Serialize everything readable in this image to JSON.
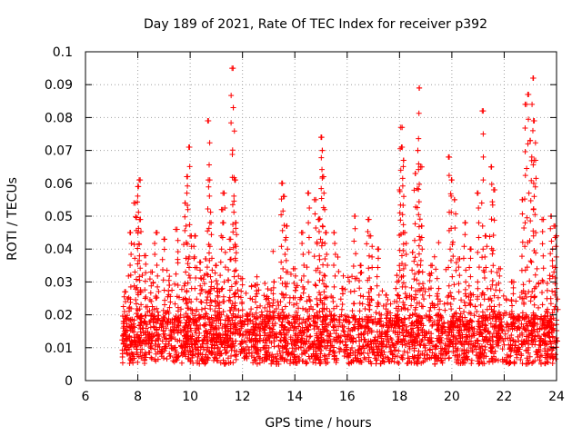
{
  "chart_data": {
    "type": "scatter",
    "title": "Day 189 of 2021, Rate Of TEC Index for receiver p392",
    "xlabel": "GPS time / hours",
    "ylabel": "ROTI / TECUs",
    "xlim": [
      6,
      24
    ],
    "ylim": [
      0,
      0.1
    ],
    "xticks": [
      6,
      8,
      10,
      12,
      14,
      16,
      18,
      20,
      22,
      24
    ],
    "xtick_labels": [
      "6",
      "8",
      "10",
      "12",
      "14",
      "16",
      "18",
      "20",
      "22",
      "24"
    ],
    "yticks": [
      0,
      0.01,
      0.02,
      0.03,
      0.04,
      0.05,
      0.06,
      0.07,
      0.08,
      0.09,
      0.1
    ],
    "ytick_labels": [
      "0",
      "0.01",
      "0.02",
      "0.03",
      "0.04",
      "0.05",
      "0.06",
      "0.07",
      "0.08",
      "0.09",
      "0.1"
    ],
    "grid": true,
    "marker": "+",
    "series_color": "#ff0000",
    "data_range_hours": [
      7.4,
      24
    ],
    "baseline_band": [
      0.005,
      0.02
    ],
    "series": [
      {
        "name": "ROTI",
        "points": [
          [
            7.5,
            0.027
          ],
          [
            7.7,
            0.045
          ],
          [
            7.9,
            0.054
          ],
          [
            8.0,
            0.059
          ],
          [
            8.05,
            0.061
          ],
          [
            8.1,
            0.049
          ],
          [
            8.3,
            0.038
          ],
          [
            8.5,
            0.033
          ],
          [
            8.7,
            0.045
          ],
          [
            9.0,
            0.043
          ],
          [
            9.2,
            0.029
          ],
          [
            9.5,
            0.046
          ],
          [
            9.8,
            0.054
          ],
          [
            9.9,
            0.062
          ],
          [
            9.95,
            0.071
          ],
          [
            10.0,
            0.044
          ],
          [
            10.2,
            0.044
          ],
          [
            10.4,
            0.036
          ],
          [
            10.6,
            0.037
          ],
          [
            10.7,
            0.079
          ],
          [
            10.75,
            0.061
          ],
          [
            10.8,
            0.048
          ],
          [
            11.0,
            0.035
          ],
          [
            11.2,
            0.052
          ],
          [
            11.3,
            0.057
          ],
          [
            11.5,
            0.043
          ],
          [
            11.6,
            0.095
          ],
          [
            11.65,
            0.083
          ],
          [
            11.7,
            0.061
          ],
          [
            11.75,
            0.048
          ],
          [
            12.0,
            0.031
          ],
          [
            12.5,
            0.029
          ],
          [
            13.0,
            0.025
          ],
          [
            13.2,
            0.03
          ],
          [
            13.5,
            0.06
          ],
          [
            13.6,
            0.056
          ],
          [
            13.7,
            0.047
          ],
          [
            14.0,
            0.034
          ],
          [
            14.3,
            0.045
          ],
          [
            14.5,
            0.057
          ],
          [
            14.8,
            0.055
          ],
          [
            14.9,
            0.049
          ],
          [
            15.0,
            0.074
          ],
          [
            15.05,
            0.07
          ],
          [
            15.1,
            0.062
          ],
          [
            15.2,
            0.045
          ],
          [
            15.5,
            0.045
          ],
          [
            15.8,
            0.028
          ],
          [
            16.3,
            0.05
          ],
          [
            16.5,
            0.035
          ],
          [
            16.8,
            0.049
          ],
          [
            16.9,
            0.044
          ],
          [
            17.2,
            0.04
          ],
          [
            17.5,
            0.026
          ],
          [
            17.9,
            0.032
          ],
          [
            18.0,
            0.058
          ],
          [
            18.05,
            0.077
          ],
          [
            18.1,
            0.071
          ],
          [
            18.15,
            0.067
          ],
          [
            18.2,
            0.045
          ],
          [
            18.5,
            0.039
          ],
          [
            18.6,
            0.063
          ],
          [
            18.7,
            0.07
          ],
          [
            18.75,
            0.089
          ],
          [
            18.8,
            0.065
          ],
          [
            18.85,
            0.047
          ],
          [
            19.2,
            0.035
          ],
          [
            19.5,
            0.028
          ],
          [
            19.9,
            0.068
          ],
          [
            20.0,
            0.061
          ],
          [
            20.1,
            0.055
          ],
          [
            20.3,
            0.037
          ],
          [
            20.5,
            0.048
          ],
          [
            20.7,
            0.04
          ],
          [
            21.0,
            0.057
          ],
          [
            21.2,
            0.082
          ],
          [
            21.3,
            0.044
          ],
          [
            21.5,
            0.065
          ],
          [
            21.6,
            0.058
          ],
          [
            21.8,
            0.034
          ],
          [
            22.3,
            0.03
          ],
          [
            22.7,
            0.055
          ],
          [
            22.8,
            0.084
          ],
          [
            22.9,
            0.087
          ],
          [
            23.0,
            0.073
          ],
          [
            23.1,
            0.092
          ],
          [
            23.15,
            0.079
          ],
          [
            23.2,
            0.067
          ],
          [
            23.5,
            0.049
          ],
          [
            23.8,
            0.05
          ],
          [
            23.9,
            0.047
          ],
          [
            24.0,
            0.044
          ]
        ]
      }
    ]
  }
}
